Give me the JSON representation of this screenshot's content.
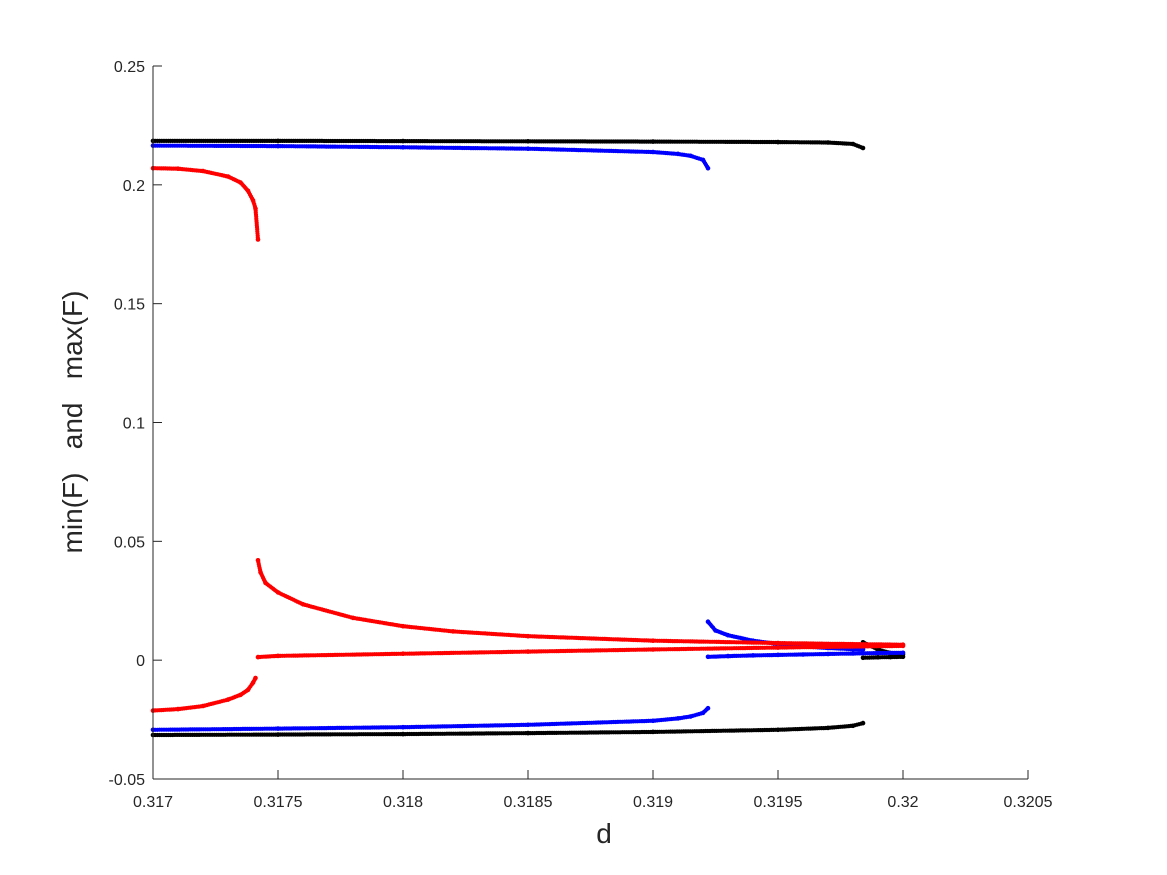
{
  "chart_data": {
    "type": "scatter",
    "title": "",
    "xlabel": "d",
    "ylabel": "min(F)   and   max(F)",
    "xlim": [
      0.317,
      0.3205
    ],
    "ylim": [
      -0.05,
      0.25
    ],
    "xticks": [
      {
        "value": 0.317,
        "label": "0.317"
      },
      {
        "value": 0.3175,
        "label": "0.3175"
      },
      {
        "value": 0.318,
        "label": "0.318"
      },
      {
        "value": 0.3185,
        "label": "0.3185"
      },
      {
        "value": 0.319,
        "label": "0.319"
      },
      {
        "value": 0.3195,
        "label": "0.3195"
      },
      {
        "value": 0.32,
        "label": "0.32"
      },
      {
        "value": 0.3205,
        "label": "0.3205"
      }
    ],
    "yticks": [
      {
        "value": -0.05,
        "label": "-0.05"
      },
      {
        "value": 0,
        "label": "0"
      },
      {
        "value": 0.05,
        "label": "0.05"
      },
      {
        "value": 0.1,
        "label": "0.1"
      },
      {
        "value": 0.15,
        "label": "0.15"
      },
      {
        "value": 0.2,
        "label": "0.2"
      },
      {
        "value": 0.25,
        "label": "0.25"
      }
    ],
    "grid": false,
    "legend": "none",
    "series": [
      {
        "color": "#000000",
        "branches": [
          {
            "points": [
              [
                0.317,
                0.2185
              ],
              [
                0.3175,
                0.2185
              ],
              [
                0.318,
                0.2184
              ],
              [
                0.3185,
                0.2183
              ],
              [
                0.319,
                0.2182
              ],
              [
                0.3195,
                0.218
              ],
              [
                0.3197,
                0.2178
              ],
              [
                0.3198,
                0.2172
              ],
              [
                0.31984,
                0.2155
              ]
            ]
          },
          {
            "points": [
              [
                0.317,
                -0.0315
              ],
              [
                0.3175,
                -0.0313
              ],
              [
                0.318,
                -0.0311
              ],
              [
                0.3185,
                -0.0307
              ],
              [
                0.319,
                -0.0302
              ],
              [
                0.3195,
                -0.0293
              ],
              [
                0.3197,
                -0.0285
              ],
              [
                0.3198,
                -0.0276
              ],
              [
                0.31984,
                -0.0265
              ]
            ]
          },
          {
            "points": [
              [
                0.31984,
                0.0075
              ],
              [
                0.3199,
                0.0045
              ],
              [
                0.31995,
                0.003
              ],
              [
                0.32,
                0.0025
              ]
            ]
          },
          {
            "points": [
              [
                0.31984,
                0.001
              ],
              [
                0.3199,
                0.0012
              ],
              [
                0.31995,
                0.0013
              ],
              [
                0.32,
                0.0014
              ]
            ]
          }
        ]
      },
      {
        "color": "#0000ff",
        "branches": [
          {
            "points": [
              [
                0.317,
                0.2165
              ],
              [
                0.3175,
                0.2163
              ],
              [
                0.318,
                0.2158
              ],
              [
                0.3185,
                0.2152
              ],
              [
                0.319,
                0.2138
              ],
              [
                0.3191,
                0.213
              ],
              [
                0.31915,
                0.2122
              ],
              [
                0.3192,
                0.2105
              ],
              [
                0.31922,
                0.207
              ]
            ]
          },
          {
            "points": [
              [
                0.317,
                -0.0293
              ],
              [
                0.3175,
                -0.0288
              ],
              [
                0.318,
                -0.0282
              ],
              [
                0.3185,
                -0.0272
              ],
              [
                0.319,
                -0.0255
              ],
              [
                0.3191,
                -0.0245
              ],
              [
                0.31915,
                -0.0237
              ],
              [
                0.3192,
                -0.0222
              ],
              [
                0.31922,
                -0.0202
              ]
            ]
          },
          {
            "points": [
              [
                0.31922,
                0.0162
              ],
              [
                0.31925,
                0.0125
              ],
              [
                0.3193,
                0.0105
              ],
              [
                0.3194,
                0.0082
              ],
              [
                0.3195,
                0.0068
              ],
              [
                0.3196,
                0.0058
              ],
              [
                0.3197,
                0.0051
              ],
              [
                0.3198,
                0.0046
              ],
              [
                0.31984,
                0.0045
              ]
            ]
          },
          {
            "points": [
              [
                0.31922,
                0.0014
              ],
              [
                0.3193,
                0.0017
              ],
              [
                0.3194,
                0.002
              ],
              [
                0.3195,
                0.0022
              ],
              [
                0.3196,
                0.0024
              ],
              [
                0.3197,
                0.0026
              ],
              [
                0.3198,
                0.0028
              ],
              [
                0.3199,
                0.003
              ],
              [
                0.32,
                0.0031
              ]
            ]
          }
        ]
      },
      {
        "color": "#ff0000",
        "branches": [
          {
            "points": [
              [
                0.317,
                0.207
              ],
              [
                0.3171,
                0.2068
              ],
              [
                0.3172,
                0.2058
              ],
              [
                0.3173,
                0.2035
              ],
              [
                0.31735,
                0.201
              ],
              [
                0.31738,
                0.1975
              ],
              [
                0.3174,
                0.1935
              ],
              [
                0.31741,
                0.19
              ],
              [
                0.31742,
                0.177
              ]
            ]
          },
          {
            "points": [
              [
                0.317,
                -0.0212
              ],
              [
                0.3171,
                -0.0206
              ],
              [
                0.3172,
                -0.0193
              ],
              [
                0.3173,
                -0.0166
              ],
              [
                0.31735,
                -0.0146
              ],
              [
                0.31738,
                -0.0125
              ],
              [
                0.3174,
                -0.0095
              ],
              [
                0.31741,
                -0.0075
              ]
            ]
          },
          {
            "points": [
              [
                0.31742,
                0.042
              ],
              [
                0.31743,
                0.037
              ],
              [
                0.31745,
                0.0325
              ],
              [
                0.3175,
                0.0285
              ],
              [
                0.3176,
                0.0235
              ],
              [
                0.3178,
                0.0178
              ],
              [
                0.318,
                0.0143
              ],
              [
                0.3182,
                0.0121
              ],
              [
                0.3185,
                0.0101
              ],
              [
                0.319,
                0.0082
              ],
              [
                0.3195,
                0.0072
              ],
              [
                0.32,
                0.0065
              ]
            ]
          },
          {
            "points": [
              [
                0.31742,
                0.0013
              ],
              [
                0.3175,
                0.0018
              ],
              [
                0.318,
                0.0027
              ],
              [
                0.3185,
                0.0036
              ],
              [
                0.319,
                0.0045
              ],
              [
                0.3195,
                0.0053
              ],
              [
                0.32,
                0.006
              ]
            ]
          }
        ]
      }
    ]
  }
}
